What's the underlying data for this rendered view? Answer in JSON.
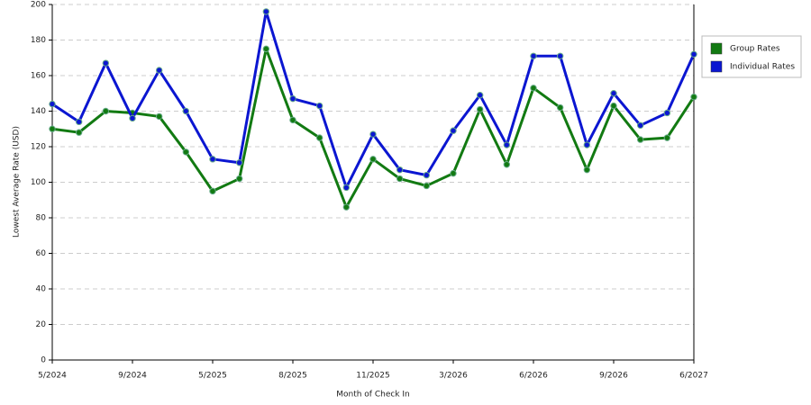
{
  "chart_data": {
    "type": "line",
    "x_label": "Month of Check In",
    "y_label": "Lowest Average Rate (USD)",
    "categories": [
      "5/2024",
      null,
      null,
      "9/2024",
      null,
      null,
      "5/2025",
      null,
      null,
      "8/2025",
      null,
      null,
      "11/2025",
      null,
      null,
      "3/2026",
      null,
      null,
      "6/2026",
      null,
      null,
      "9/2026",
      null,
      null,
      "6/2027"
    ],
    "series": [
      {
        "name": "Group Rates",
        "color": "#127a12",
        "values": [
          130,
          128,
          140,
          139,
          137,
          117,
          95,
          102,
          175,
          135,
          125,
          86,
          113,
          102,
          98,
          105,
          141,
          110,
          153,
          142,
          107,
          143,
          124,
          125,
          148
        ]
      },
      {
        "name": "Individual Rates",
        "color": "#0b16d1",
        "values": [
          144,
          134,
          167,
          136,
          163,
          140,
          113,
          111,
          196,
          147,
          143,
          97,
          127,
          107,
          104,
          129,
          149,
          121,
          171,
          171,
          121,
          150,
          132,
          139,
          172
        ]
      }
    ],
    "ylim": [
      0,
      200
    ],
    "yticks": [
      0,
      20,
      40,
      60,
      80,
      100,
      120,
      140,
      160,
      180,
      200
    ],
    "grid": true,
    "legend": "right"
  }
}
